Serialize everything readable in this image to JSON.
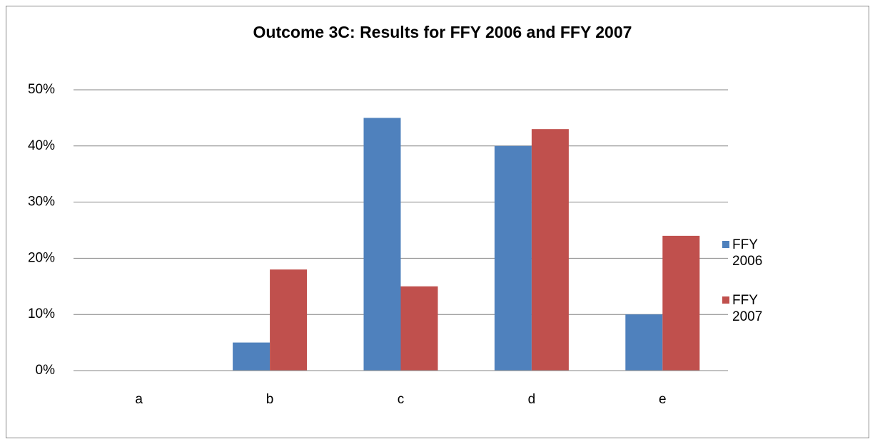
{
  "chart_data": {
    "type": "bar",
    "title": "Outcome 3C: Results for FFY 2006 and FFY 2007",
    "categories": [
      "a",
      "b",
      "c",
      "d",
      "e"
    ],
    "series": [
      {
        "name": "FFY 2006",
        "color": "#4f81bd",
        "values": [
          0,
          5,
          45,
          40,
          10
        ]
      },
      {
        "name": "FFY 2007",
        "color": "#c0504d",
        "values": [
          0,
          18,
          15,
          43,
          24
        ]
      }
    ],
    "ylim": [
      0,
      50
    ],
    "yticks": [
      {
        "value": 0,
        "label": "0%"
      },
      {
        "value": 10,
        "label": "10%"
      },
      {
        "value": 20,
        "label": "20%"
      },
      {
        "value": 30,
        "label": "30%"
      },
      {
        "value": 40,
        "label": "40%"
      },
      {
        "value": 50,
        "label": "50%"
      }
    ],
    "grid": true,
    "legend": "right"
  }
}
